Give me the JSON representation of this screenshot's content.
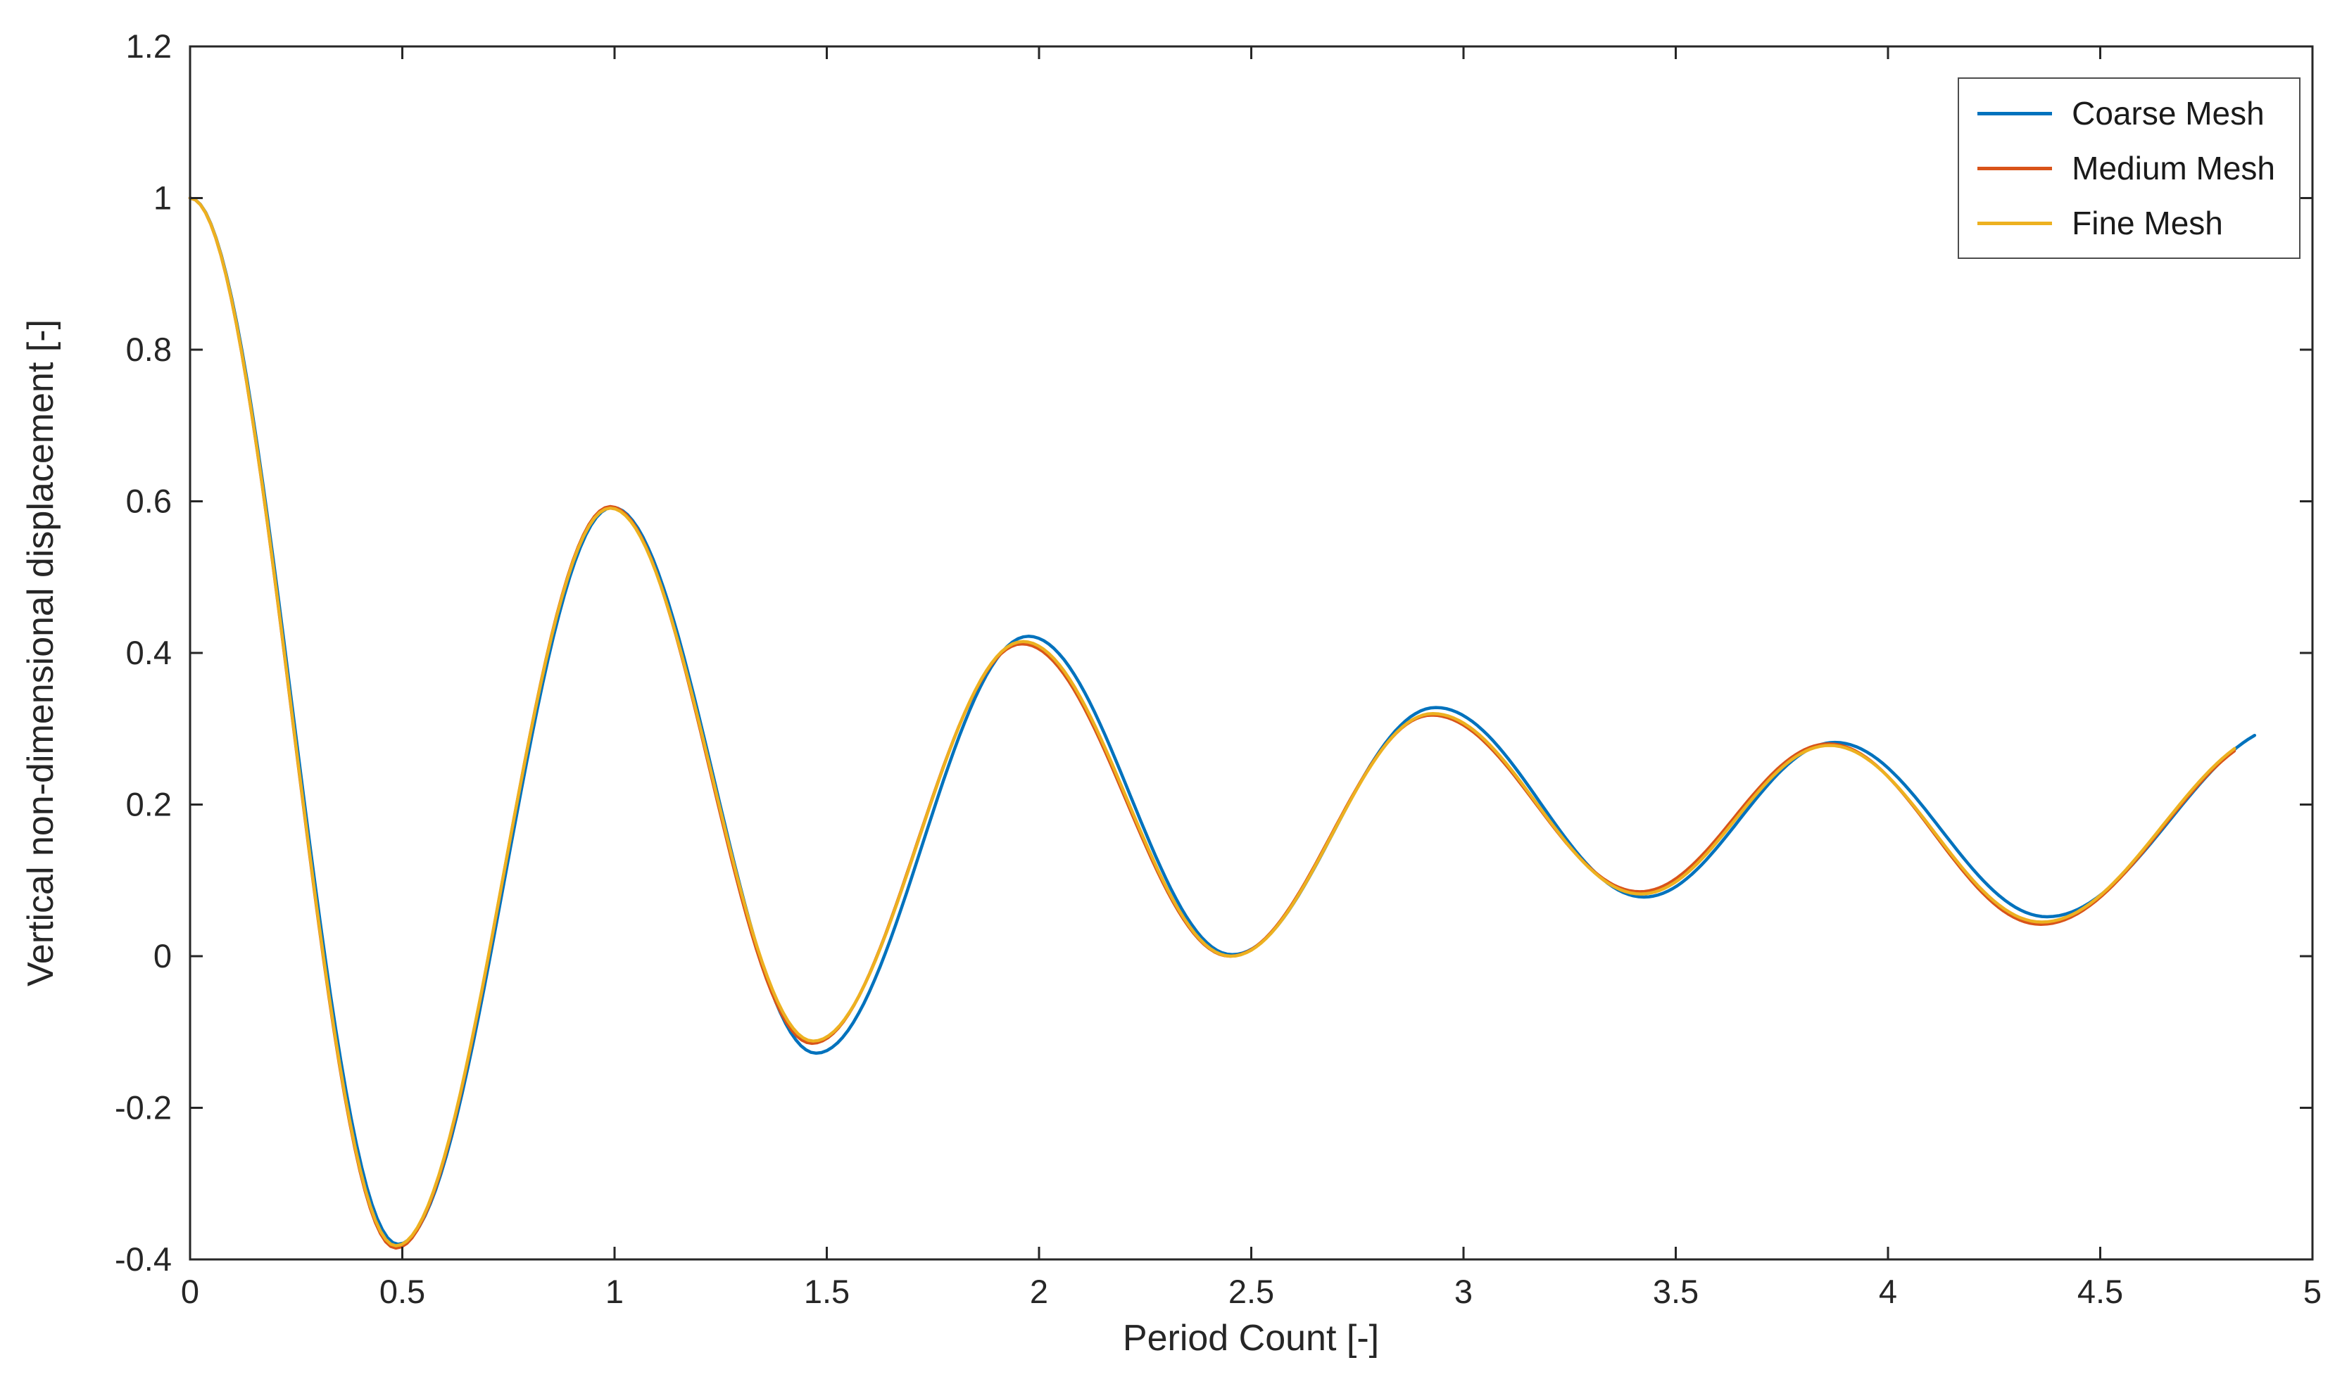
{
  "chart_data": {
    "type": "line",
    "title": "",
    "xlabel": "Period Count [-]",
    "ylabel": "Vertical non-dimensional displacement [-]",
    "xlim": [
      0,
      5
    ],
    "ylim": [
      -0.4,
      1.2
    ],
    "grid": false,
    "legend_position": "northeast",
    "axis_color": "#262626",
    "background_color": "#ffffff",
    "xticks": [
      {
        "v": 0,
        "label": "0"
      },
      {
        "v": 0.5,
        "label": "0.5"
      },
      {
        "v": 1,
        "label": "1"
      },
      {
        "v": 1.5,
        "label": "1.5"
      },
      {
        "v": 2,
        "label": "2"
      },
      {
        "v": 2.5,
        "label": "2.5"
      },
      {
        "v": 3,
        "label": "3"
      },
      {
        "v": 3.5,
        "label": "3.5"
      },
      {
        "v": 4,
        "label": "4"
      },
      {
        "v": 4.5,
        "label": "4.5"
      },
      {
        "v": 5,
        "label": "5"
      }
    ],
    "yticks": [
      {
        "v": -0.4,
        "label": "-0.4"
      },
      {
        "v": -0.2,
        "label": "-0.2"
      },
      {
        "v": 0,
        "label": "0"
      },
      {
        "v": 0.2,
        "label": "0.2"
      },
      {
        "v": 0.4,
        "label": "0.4"
      },
      {
        "v": 0.6,
        "label": "0.6"
      },
      {
        "v": 0.8,
        "label": "0.8"
      },
      {
        "v": 1,
        "label": "1"
      },
      {
        "v": 1.2,
        "label": "1.2"
      }
    ],
    "curve_model": "damped oscillation; piecewise cosine through listed extrema [t, y]",
    "series": [
      {
        "name": "Coarse Mesh",
        "color": "#0072BD",
        "t_end": 4.865,
        "extrema": [
          [
            0,
            1.0
          ],
          [
            0.49,
            -0.38
          ],
          [
            0.995,
            0.592
          ],
          [
            1.475,
            -0.128
          ],
          [
            1.975,
            0.422
          ],
          [
            2.455,
            0.002
          ],
          [
            2.935,
            0.328
          ],
          [
            3.425,
            0.078
          ],
          [
            3.875,
            0.282
          ],
          [
            4.375,
            0.052
          ],
          [
            4.95,
            0.305
          ]
        ]
      },
      {
        "name": "Medium Mesh",
        "color": "#D95319",
        "t_end": 4.82,
        "extrema": [
          [
            0,
            1.0
          ],
          [
            0.485,
            -0.385
          ],
          [
            0.99,
            0.593
          ],
          [
            1.465,
            -0.115
          ],
          [
            1.96,
            0.412
          ],
          [
            2.45,
            0.0
          ],
          [
            2.925,
            0.318
          ],
          [
            3.415,
            0.085
          ],
          [
            3.86,
            0.28
          ],
          [
            4.36,
            0.042
          ],
          [
            4.93,
            0.295
          ]
        ]
      },
      {
        "name": "Fine Mesh",
        "color": "#EDB120",
        "t_end": 4.83,
        "extrema": [
          [
            0,
            1.0
          ],
          [
            0.485,
            -0.382
          ],
          [
            0.99,
            0.591
          ],
          [
            1.468,
            -0.112
          ],
          [
            1.962,
            0.415
          ],
          [
            2.452,
            0.0
          ],
          [
            2.928,
            0.32
          ],
          [
            3.418,
            0.082
          ],
          [
            3.862,
            0.278
          ],
          [
            4.362,
            0.045
          ],
          [
            4.93,
            0.298
          ]
        ]
      }
    ]
  }
}
